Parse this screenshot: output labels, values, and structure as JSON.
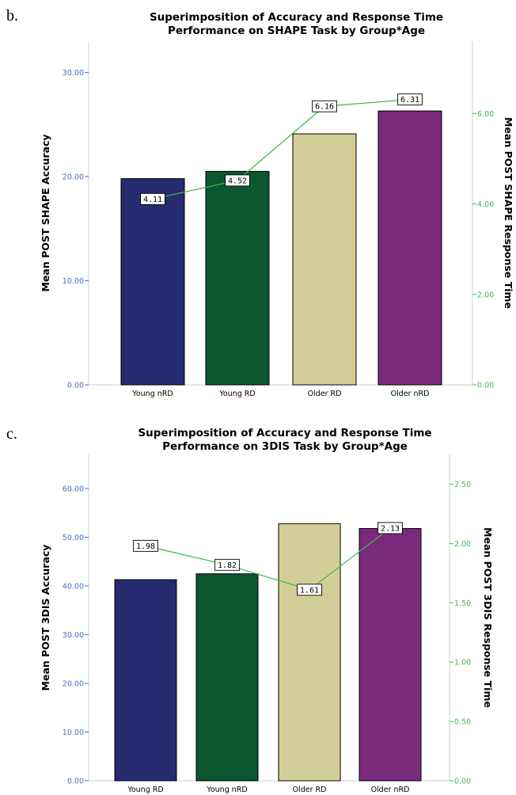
{
  "colors": {
    "left_axis": "#4a6fc4",
    "right_axis": "#3dbb4b",
    "line": "#3dbb4b",
    "bar_stroke": "#000000"
  },
  "chart_data": [
    {
      "panel": "b.",
      "type": "bar",
      "title": [
        "Superimposition of Accuracy and Response Time",
        "Performance on SHAPE Task by Group*Age"
      ],
      "categories": [
        "Young nRD",
        "Young RD",
        "Older RD",
        "Older nRD"
      ],
      "bar_colors": [
        "#262a6e",
        "#0c5630",
        "#d3cd97",
        "#7a2a7d"
      ],
      "bar_series": {
        "values": [
          19.8,
          20.5,
          24.1,
          26.3
        ]
      },
      "line_series": {
        "values": [
          4.11,
          4.52,
          6.16,
          6.31
        ],
        "labels": [
          "4.11",
          "4.52",
          "6.16",
          "6.31"
        ]
      },
      "ylabel_left": "Mean POST SHAPE Accuracy",
      "ylabel_right": "Mean POST SHAPE Response Time",
      "ylim_left": [
        0,
        33
      ],
      "ylim_right": [
        0,
        7.6
      ],
      "yticks_left": [
        "0.00",
        "10.00",
        "20.00",
        "30.00"
      ],
      "yticks_right": [
        "0.00",
        "2.00",
        "4.00",
        "6.00"
      ],
      "grid": false,
      "legend": "none"
    },
    {
      "panel": "c.",
      "type": "bar",
      "title": [
        "Superimposition of Accuracy and Response Time",
        "Performance on 3DIS Task by Group*Age"
      ],
      "categories": [
        "Young RD",
        "Young nRD",
        "Older RD",
        "Older nRD"
      ],
      "bar_colors": [
        "#262a6e",
        "#0c5630",
        "#d3cd97",
        "#7a2a7d"
      ],
      "bar_series": {
        "values": [
          41.3,
          42.5,
          52.8,
          51.8
        ]
      },
      "line_series": {
        "values": [
          1.98,
          1.82,
          1.61,
          2.13
        ],
        "labels": [
          "1.98",
          "1.82",
          "1.61",
          "2.13"
        ]
      },
      "ylabel_left": "Mean POST 3DIS Accuracy",
      "ylabel_right": "Mean POST 3DIS Response Time",
      "ylim_left": [
        0,
        67
      ],
      "ylim_right": [
        0,
        2.75
      ],
      "yticks_left": [
        "0.00",
        "10.00",
        "20.00",
        "30.00",
        "40.00",
        "50.00",
        "60.00"
      ],
      "yticks_right": [
        "0.00",
        "0.50",
        "1.00",
        "1.50",
        "2.00",
        "2.50"
      ],
      "grid": false,
      "legend": "none"
    }
  ]
}
